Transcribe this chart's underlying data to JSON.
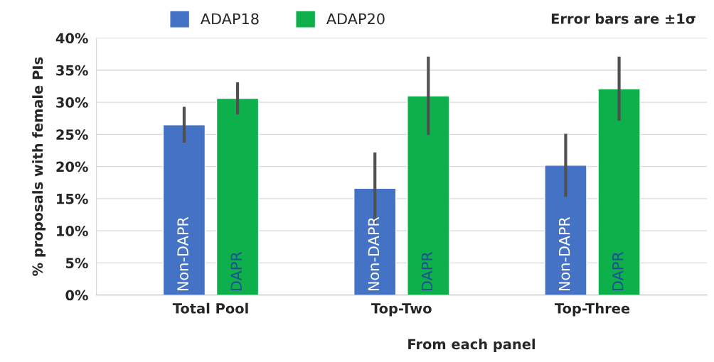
{
  "chart_data": {
    "type": "bar",
    "xlabel": "From each panel",
    "ylabel": "% proposals with female PIs",
    "categories": [
      "Total Pool",
      "Top-Two",
      "Top-Three"
    ],
    "series": [
      {
        "name": "ADAP18",
        "color": "#4472c4",
        "values": [
          26.5,
          16.6,
          20.2
        ],
        "errors": [
          2.8,
          5.6,
          4.9
        ],
        "value_labels": [
          "Non-DAPR",
          "Non-DAPR",
          "Non-DAPR"
        ]
      },
      {
        "name": "ADAP20",
        "color": "#0db04b",
        "values": [
          30.6,
          31.0,
          32.1
        ],
        "errors": [
          2.5,
          6.1,
          5.0
        ],
        "value_labels": [
          "DAPR",
          "DAPR",
          "DAPR"
        ]
      }
    ],
    "ylim": [
      0,
      40
    ],
    "yticks": [
      {
        "value": 0,
        "label": "0%"
      },
      {
        "value": 5,
        "label": "5%"
      },
      {
        "value": 10,
        "label": "10%"
      },
      {
        "value": 15,
        "label": "15%"
      },
      {
        "value": 20,
        "label": "20%"
      },
      {
        "value": 25,
        "label": "25%"
      },
      {
        "value": 30,
        "label": "30%"
      },
      {
        "value": 35,
        "label": "35%"
      },
      {
        "value": 40,
        "label": "40%"
      }
    ],
    "grid": "y",
    "legend": "top left",
    "annotations": [
      "Error bars are ±1σ"
    ]
  }
}
